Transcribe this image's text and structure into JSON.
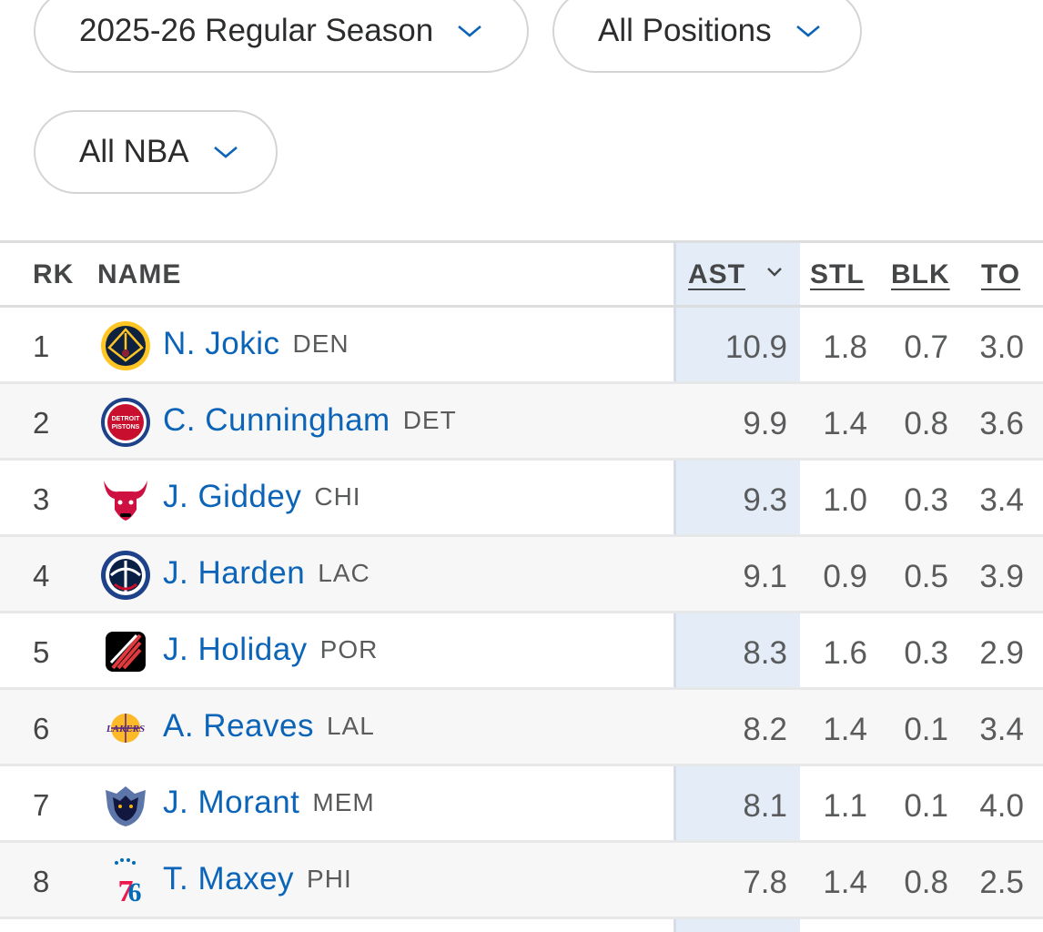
{
  "filters": {
    "season": "2025-26 Regular Season",
    "position": "All Positions",
    "league": "All NBA"
  },
  "table": {
    "headers": {
      "rk": "RK",
      "name": "NAME",
      "ast": "AST",
      "stl": "STL",
      "blk": "BLK",
      "to": "TO"
    },
    "sorted_column": "AST",
    "rows": [
      {
        "rk": "1",
        "name": "N. Jokic",
        "team": "DEN",
        "logo": "nuggets-logo",
        "ast": "10.9",
        "stl": "1.8",
        "blk": "0.7",
        "to": "3.0"
      },
      {
        "rk": "2",
        "name": "C. Cunningham",
        "team": "DET",
        "logo": "pistons-logo",
        "ast": "9.9",
        "stl": "1.4",
        "blk": "0.8",
        "to": "3.6"
      },
      {
        "rk": "3",
        "name": "J. Giddey",
        "team": "CHI",
        "logo": "bulls-logo",
        "ast": "9.3",
        "stl": "1.0",
        "blk": "0.3",
        "to": "3.4"
      },
      {
        "rk": "4",
        "name": "J. Harden",
        "team": "LAC",
        "logo": "clippers-logo",
        "ast": "9.1",
        "stl": "0.9",
        "blk": "0.5",
        "to": "3.9"
      },
      {
        "rk": "5",
        "name": "J. Holiday",
        "team": "POR",
        "logo": "trail-blazers-logo",
        "ast": "8.3",
        "stl": "1.6",
        "blk": "0.3",
        "to": "2.9"
      },
      {
        "rk": "6",
        "name": "A. Reaves",
        "team": "LAL",
        "logo": "lakers-logo",
        "ast": "8.2",
        "stl": "1.4",
        "blk": "0.1",
        "to": "3.4"
      },
      {
        "rk": "7",
        "name": "J. Morant",
        "team": "MEM",
        "logo": "grizzlies-logo",
        "ast": "8.1",
        "stl": "1.1",
        "blk": "0.1",
        "to": "4.0"
      },
      {
        "rk": "8",
        "name": "T. Maxey",
        "team": "PHI",
        "logo": "76ers-logo",
        "ast": "7.8",
        "stl": "1.4",
        "blk": "0.8",
        "to": "2.5"
      }
    ]
  },
  "colors": {
    "link": "#0b64b8",
    "sorted_column_bg": "#e4edf7",
    "chevron": "#0b64b8"
  }
}
